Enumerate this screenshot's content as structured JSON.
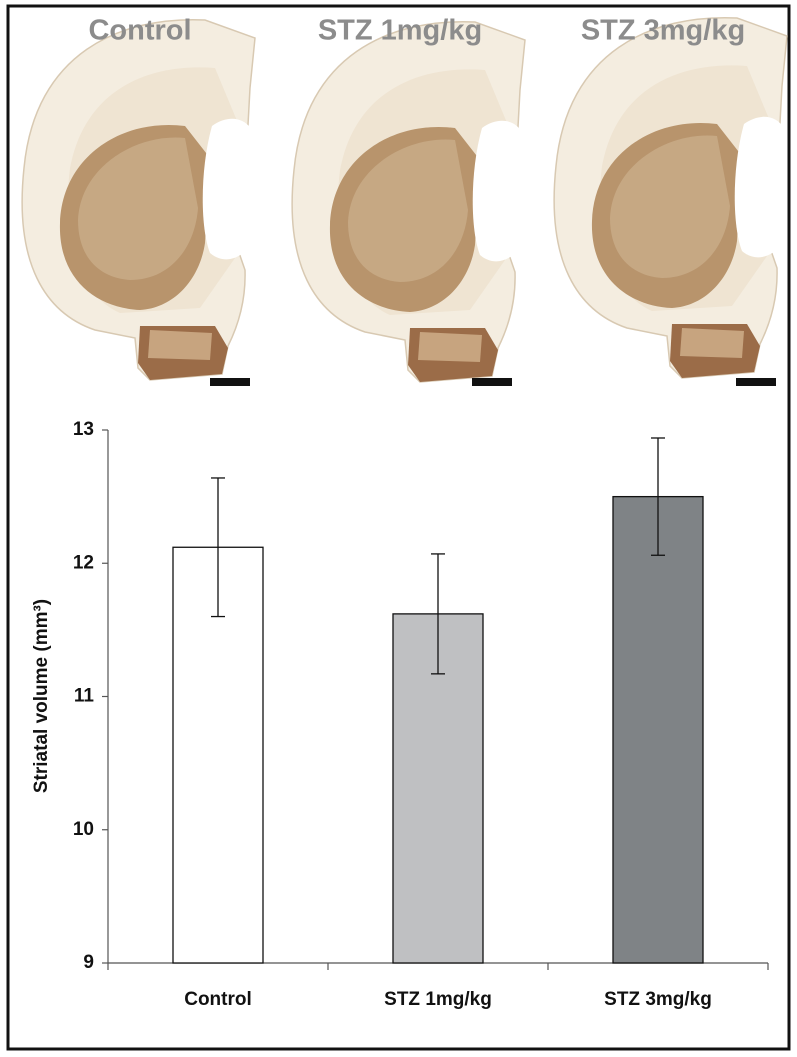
{
  "image_panels": {
    "labels": [
      "Control",
      "STZ 1mg/kg",
      "STZ 3mg/kg"
    ]
  },
  "chart_data": {
    "type": "bar",
    "ylabel": "Striatal volume  (mm³)",
    "categories": [
      "Control",
      "STZ 1mg/kg",
      "STZ 3mg/kg"
    ],
    "values": [
      12.12,
      11.62,
      12.5
    ],
    "errors": [
      0.52,
      0.45,
      0.44
    ],
    "colors": [
      "#ffffff",
      "#bfc0c2",
      "#7f8386"
    ],
    "ylim": [
      9,
      13
    ],
    "yticks": [
      9,
      10,
      11,
      12,
      13
    ]
  }
}
